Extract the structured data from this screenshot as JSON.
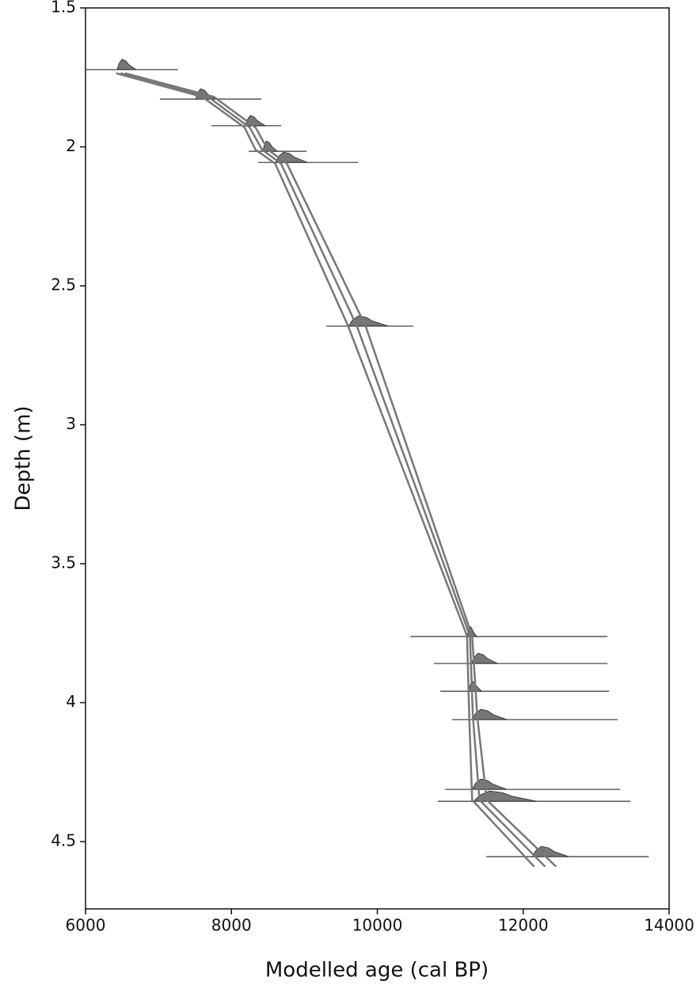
{
  "chart_data": {
    "type": "line",
    "x_label": "Modelled age (cal BP)",
    "y_label": "Depth (m)",
    "xlim": [
      6000,
      14000
    ],
    "ylim": [
      1.5,
      4.742
    ],
    "y_inverted": true,
    "xticks": [
      6000,
      8000,
      10000,
      12000,
      14000
    ],
    "yticks": [
      1.5,
      2,
      2.5,
      3,
      3.5,
      4,
      4.5
    ],
    "series": [
      {
        "color": "#777777",
        "x": [
          6420,
          7600,
          8180,
          8330,
          8600,
          9600,
          11230,
          11260,
          11300,
          12150
        ],
        "y": [
          1.735,
          1.82,
          1.93,
          2.01,
          2.06,
          2.645,
          3.76,
          4.05,
          4.35,
          4.59
        ]
      },
      {
        "color": "#777777",
        "x": [
          6480,
          7680,
          8250,
          8420,
          8680,
          9720,
          11270,
          11310,
          11400,
          12300
        ],
        "y": [
          1.735,
          1.82,
          1.93,
          2.01,
          2.06,
          2.645,
          3.76,
          4.05,
          4.35,
          4.59
        ]
      },
      {
        "color": "#777777",
        "x": [
          6540,
          7760,
          8330,
          8500,
          8760,
          9840,
          11300,
          11370,
          11500,
          12450
        ],
        "y": [
          1.735,
          1.82,
          1.93,
          2.01,
          2.06,
          2.645,
          3.76,
          4.05,
          4.35,
          4.59
        ]
      }
    ],
    "samples": [
      {
        "depth": 1.722,
        "range": [
          6000,
          7270
        ],
        "peak": [
          6434,
          6695
        ]
      },
      {
        "depth": 1.828,
        "range": [
          7020,
          8410
        ],
        "peak": [
          7510,
          7780
        ]
      },
      {
        "depth": 1.924,
        "range": [
          7726,
          8682
        ],
        "peak": [
          8190,
          8465
        ]
      },
      {
        "depth": 2.016,
        "range": [
          8237,
          9030
        ],
        "peak": [
          8430,
          8630
        ]
      },
      {
        "depth": 2.056,
        "range": [
          8367,
          9735
        ],
        "peak": [
          8606,
          9040
        ]
      },
      {
        "depth": 2.645,
        "range": [
          9300,
          10495
        ],
        "peak": [
          9605,
          10150
        ]
      },
      {
        "depth": 3.762,
        "range": [
          10452,
          13155
        ],
        "peak": [
          11233,
          11364
        ]
      },
      {
        "depth": 3.859,
        "range": [
          10777,
          13155
        ],
        "peak": [
          11290,
          11650
        ]
      },
      {
        "depth": 3.959,
        "range": [
          10864,
          13177
        ],
        "peak": [
          11255,
          11430
        ]
      },
      {
        "depth": 4.061,
        "range": [
          11027,
          13296
        ],
        "peak": [
          11300,
          11776
        ]
      },
      {
        "depth": 4.312,
        "range": [
          10930,
          13330
        ],
        "peak": [
          11300,
          11776
        ]
      },
      {
        "depth": 4.355,
        "range": [
          10830,
          13470
        ],
        "peak": [
          11320,
          12190
        ]
      },
      {
        "depth": 4.554,
        "range": [
          11494,
          13720
        ],
        "peak": [
          12124,
          12623
        ]
      }
    ],
    "sample_color": "#777777",
    "sample_line_color": "#333333"
  }
}
